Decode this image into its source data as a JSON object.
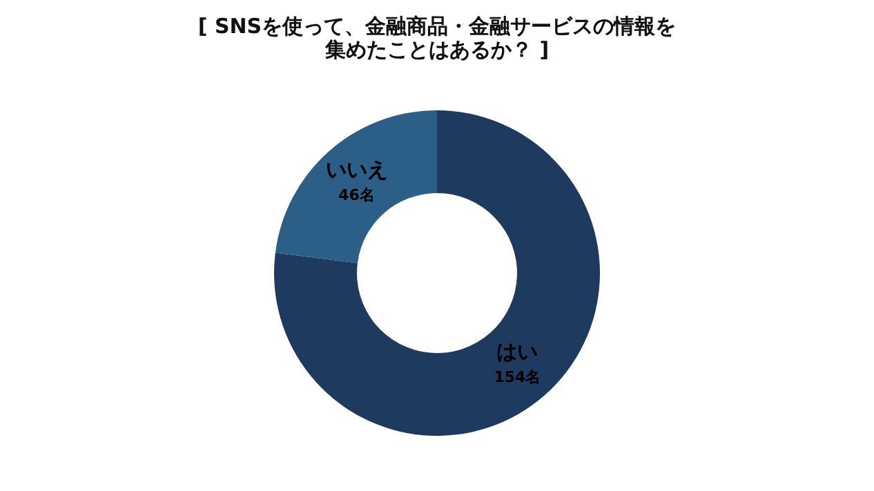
{
  "chart_data": {
    "type": "donut",
    "title": [
      "[ SNSを使って、金融商品・金融サービスの情報を",
      "集めたことはあるか？ ]"
    ],
    "categories": [
      "はい",
      "いいえ"
    ],
    "values": [
      154,
      46
    ],
    "colors": [
      "#1f3a5f",
      "#2b5f88"
    ],
    "value_labels": [
      "154名",
      "46名"
    ],
    "legend": false
  }
}
